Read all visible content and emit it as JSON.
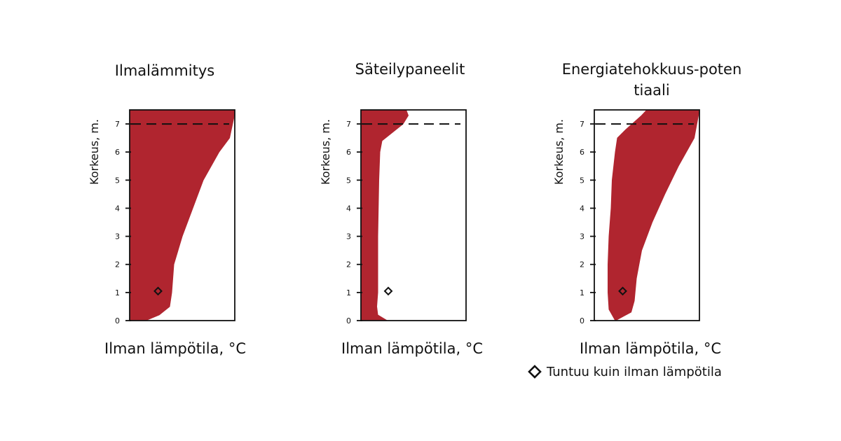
{
  "colors": {
    "fill": "#b0252f",
    "line": "#111111"
  },
  "legend": {
    "label": "Tuntuu kuin ilman lämpötila",
    "icon": "diamond-outline-icon"
  },
  "chart_data": [
    {
      "type": "area",
      "title": "Ilmalämmitys",
      "xlabel": "Ilman lämpötila, °C",
      "ylabel": "Korkeus, m.",
      "yticks": [
        0,
        1,
        2,
        3,
        4,
        5,
        6,
        7
      ],
      "ylim": [
        0,
        7.5
      ],
      "reference_line": {
        "y": 7,
        "style": "dashed"
      },
      "marker": {
        "x": 0.27,
        "y": 1.05
      },
      "profile": [
        [
          0.15,
          0
        ],
        [
          0.28,
          0.2
        ],
        [
          0.38,
          0.5
        ],
        [
          0.4,
          1
        ],
        [
          0.42,
          2
        ],
        [
          0.5,
          3
        ],
        [
          0.6,
          4
        ],
        [
          0.7,
          5
        ],
        [
          0.85,
          6
        ],
        [
          0.95,
          6.5
        ],
        [
          0.99,
          7.2
        ],
        [
          1.0,
          7.5
        ]
      ]
    },
    {
      "type": "area",
      "title": "Säteilypaneelit",
      "xlabel": "Ilman lämpötila, °C",
      "ylabel": "Korkeus, m.",
      "yticks": [
        0,
        1,
        2,
        3,
        4,
        5,
        6,
        7
      ],
      "ylim": [
        0,
        7.5
      ],
      "reference_line": {
        "y": 7,
        "style": "dashed"
      },
      "marker": {
        "x": 0.26,
        "y": 1.05
      },
      "profile": [
        [
          0.25,
          0
        ],
        [
          0.16,
          0.2
        ],
        [
          0.15,
          0.5
        ],
        [
          0.16,
          1
        ],
        [
          0.16,
          3
        ],
        [
          0.17,
          5
        ],
        [
          0.18,
          6
        ],
        [
          0.2,
          6.4
        ],
        [
          0.3,
          6.7
        ],
        [
          0.4,
          7
        ],
        [
          0.45,
          7.3
        ],
        [
          0.43,
          7.5
        ]
      ]
    },
    {
      "type": "area",
      "title": "Energiatehokkuus-potentiaali",
      "xlabel": "Ilman lämpötila, °C",
      "ylabel": "Korkeus, m.",
      "yticks": [
        0,
        1,
        2,
        3,
        4,
        5,
        6,
        7
      ],
      "ylim": [
        0,
        7.5
      ],
      "reference_line": {
        "y": 7,
        "style": "dashed"
      },
      "marker": {
        "x": 0.27,
        "y": 1.05
      },
      "profile_left": [
        [
          0.2,
          0
        ],
        [
          0.14,
          0.4
        ],
        [
          0.13,
          1
        ],
        [
          0.13,
          2
        ],
        [
          0.14,
          3
        ],
        [
          0.16,
          4
        ],
        [
          0.17,
          5
        ],
        [
          0.2,
          6
        ],
        [
          0.22,
          6.5
        ],
        [
          0.3,
          6.8
        ],
        [
          0.45,
          7.3
        ],
        [
          0.5,
          7.5
        ]
      ],
      "profile_right": [
        [
          0.2,
          0
        ],
        [
          0.35,
          0.3
        ],
        [
          0.38,
          0.7
        ],
        [
          0.4,
          1.5
        ],
        [
          0.45,
          2.5
        ],
        [
          0.55,
          3.5
        ],
        [
          0.67,
          4.5
        ],
        [
          0.8,
          5.5
        ],
        [
          0.95,
          6.5
        ],
        [
          1.0,
          7.5
        ]
      ]
    }
  ]
}
